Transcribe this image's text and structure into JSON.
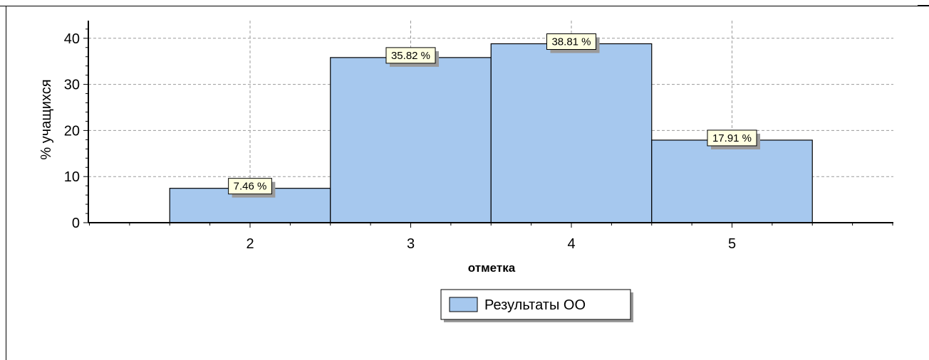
{
  "chart_data": {
    "type": "bar",
    "categories": [
      "2",
      "3",
      "4",
      "5"
    ],
    "values": [
      7.46,
      35.82,
      38.81,
      17.91
    ],
    "data_labels": [
      "7.46 %",
      "35.82 %",
      "38.81 %",
      "17.91 %"
    ],
    "xlabel": "отметка",
    "ylabel": "% учащихся",
    "ylim": [
      0,
      44
    ],
    "yticks": [
      0,
      10,
      20,
      30,
      40
    ],
    "ytick_labels": [
      "0",
      "10",
      "20",
      "30",
      "40"
    ],
    "grid": true,
    "legend_position": "bottom-center",
    "series": [
      {
        "name": "Результаты ОО",
        "values": [
          7.46,
          35.82,
          38.81,
          17.91
        ],
        "color": "#a6c8ee"
      }
    ],
    "colors": {
      "bar_fill": "#a6c8ee",
      "bar_stroke": "#000000",
      "label_fill": "#ffffe1",
      "shadow": "#9a9a9a",
      "grid": "#9a9a9a"
    }
  }
}
